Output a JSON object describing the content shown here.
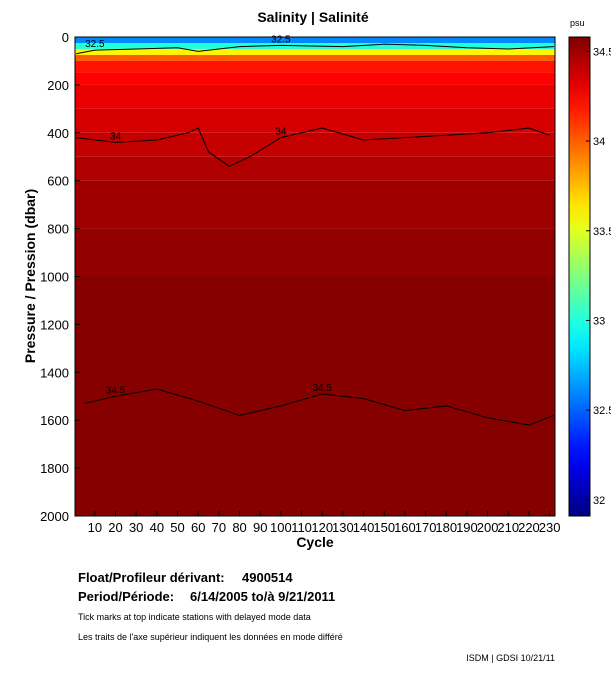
{
  "chart_data": {
    "type": "heatmap",
    "title": "Salinity | Salinité",
    "x_label": "Cycle",
    "y_label": "Pressure / Pression (dbar)",
    "xlim": [
      0.4,
      232.6
    ],
    "xticks": [
      10,
      20,
      30,
      40,
      50,
      60,
      70,
      80,
      90,
      100,
      110,
      120,
      130,
      140,
      150,
      160,
      170,
      180,
      190,
      200,
      210,
      220,
      230
    ],
    "ylim": [
      2000,
      0
    ],
    "yticks": [
      0,
      200,
      400,
      600,
      800,
      1000,
      1200,
      1400,
      1600,
      1800,
      2000
    ],
    "depth_bins": [
      0,
      25,
      50,
      75,
      100,
      150,
      200,
      300,
      400,
      500,
      600,
      800,
      1000,
      2000
    ],
    "values": [
      32.6,
      33.0,
      33.6,
      34.0,
      34.2,
      34.25,
      34.3,
      34.35,
      34.4,
      34.45,
      34.5,
      34.53,
      34.56
    ],
    "colorbar": {
      "label": "psu",
      "clim": [
        31.91,
        34.58
      ],
      "ticks": [
        32,
        32.5,
        33,
        33.5,
        34,
        34.5
      ]
    },
    "contours": [
      {
        "level": 32.5,
        "x": [
          1,
          10,
          30,
          50,
          60,
          80,
          100,
          130,
          150,
          170,
          190,
          210,
          232
        ],
        "y": [
          70,
          55,
          50,
          45,
          60,
          40,
          35,
          40,
          30,
          35,
          45,
          50,
          40
        ]
      },
      {
        "level": 34,
        "x": [
          1,
          20,
          40,
          55,
          60,
          65,
          75,
          85,
          100,
          120,
          140,
          160,
          180,
          200,
          220,
          230
        ],
        "y": [
          420,
          440,
          430,
          400,
          380,
          480,
          540,
          500,
          420,
          380,
          430,
          420,
          410,
          400,
          380,
          410
        ]
      },
      {
        "level": 34.5,
        "x": [
          5,
          20,
          40,
          60,
          80,
          100,
          120,
          140,
          160,
          180,
          200,
          220,
          232
        ],
        "y": [
          1530,
          1500,
          1470,
          1520,
          1580,
          1540,
          1490,
          1510,
          1560,
          1540,
          1590,
          1620,
          1580
        ]
      }
    ]
  },
  "footer": {
    "float_label": "Float/Profileur dérivant:",
    "float_id": "4900514",
    "period_label": "Period/Période:",
    "period": "6/14/2005 to/à 9/21/2011",
    "note_en": "Tick marks at top indicate stations with delayed mode data",
    "note_fr": "Les traits de l'axe supérieur indiquent les données en mode différé",
    "credit": "ISDM | GDSI 10/21/11"
  }
}
